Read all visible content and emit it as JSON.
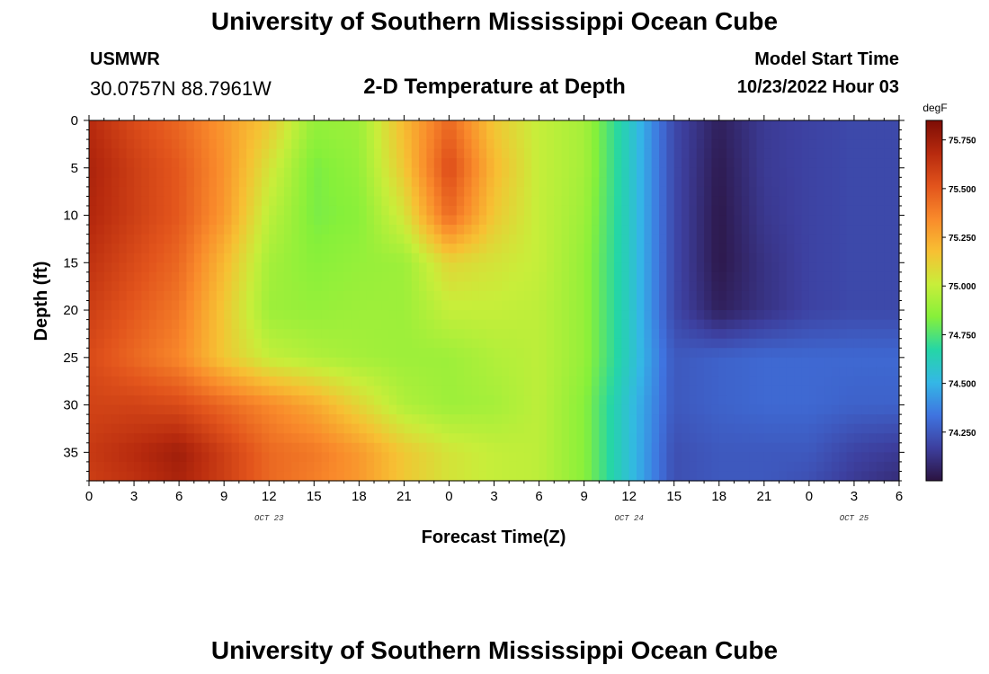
{
  "header": {
    "title": "University of Southern Mississippi Ocean Cube",
    "station": "USMWR",
    "coords": "30.0757N  88.7961W",
    "subtitle": "2-D Temperature at Depth",
    "start_label": "Model Start Time",
    "start_time": "10/23/2022 Hour 03"
  },
  "footer": {
    "title": "University of Southern Mississippi Ocean Cube"
  },
  "colors": {
    "colormap": [
      "#2b1340",
      "#3d3f9e",
      "#3f74e0",
      "#34b7e6",
      "#25d6a6",
      "#86f03a",
      "#c8ee3a",
      "#f7c033",
      "#f98a2b",
      "#e2541c",
      "#b72a0e",
      "#7d0d05"
    ]
  },
  "chart_data": {
    "type": "heatmap",
    "title": "2-D Temperature at Depth",
    "xlabel": "Forecast Time(Z)",
    "ylabel": "Depth (ft)",
    "xlim": [
      0,
      54
    ],
    "ylim": [
      0,
      38
    ],
    "y_inverted": true,
    "x_tick_labels": [
      "0",
      "3",
      "6",
      "9",
      "12",
      "15",
      "18",
      "21",
      "0",
      "3",
      "6",
      "9",
      "12",
      "15",
      "18",
      "21",
      "0",
      "3",
      "6"
    ],
    "x_date_labels": [
      {
        "label": "OCT 23",
        "at_hour": 12
      },
      {
        "label": "OCT 24",
        "at_hour": 36
      },
      {
        "label": "OCT 25",
        "at_hour": 51
      }
    ],
    "y_ticks": [
      0,
      5,
      10,
      15,
      20,
      25,
      30,
      35
    ],
    "colorbar": {
      "unit": "degF",
      "range": [
        74.0,
        75.85
      ],
      "ticks": [
        "75.750",
        "75.500",
        "75.250",
        "75.000",
        "74.750",
        "74.500",
        "74.250"
      ]
    },
    "grid": false,
    "depths": [
      0,
      5,
      10,
      15,
      20,
      25,
      30,
      35,
      38
    ],
    "hours": [
      0,
      3,
      6,
      9,
      12,
      15,
      18,
      21,
      24,
      27,
      30,
      33,
      36,
      39,
      42,
      45,
      48,
      51,
      54
    ],
    "temperatures": [
      [
        75.68,
        75.55,
        75.45,
        75.3,
        75.15,
        74.88,
        74.9,
        75.2,
        75.45,
        75.15,
        75.0,
        74.92,
        74.6,
        74.2,
        74.05,
        74.15,
        74.18,
        74.2,
        74.2
      ],
      [
        75.72,
        75.6,
        75.5,
        75.32,
        75.05,
        74.82,
        74.88,
        75.15,
        75.55,
        75.2,
        75.0,
        74.92,
        74.6,
        74.2,
        74.03,
        74.15,
        74.18,
        74.2,
        74.2
      ],
      [
        75.7,
        75.6,
        75.5,
        75.3,
        74.98,
        74.82,
        74.85,
        75.05,
        75.45,
        75.15,
        75.0,
        74.9,
        74.6,
        74.2,
        74.02,
        74.14,
        74.18,
        74.2,
        74.2
      ],
      [
        75.65,
        75.55,
        75.45,
        75.2,
        74.92,
        74.85,
        74.88,
        74.9,
        75.1,
        75.05,
        75.0,
        74.88,
        74.6,
        74.2,
        74.02,
        74.12,
        74.18,
        74.2,
        74.2
      ],
      [
        75.6,
        75.5,
        75.4,
        75.15,
        74.9,
        74.88,
        74.9,
        74.9,
        75.0,
        75.0,
        74.98,
        74.88,
        74.6,
        74.2,
        74.05,
        74.12,
        74.18,
        74.2,
        74.2
      ],
      [
        75.55,
        75.45,
        75.35,
        75.15,
        75.0,
        74.95,
        74.92,
        74.9,
        74.9,
        74.95,
        74.98,
        74.88,
        74.6,
        74.25,
        74.28,
        74.3,
        74.3,
        74.3,
        74.3
      ],
      [
        75.58,
        75.58,
        75.55,
        75.45,
        75.35,
        75.25,
        75.1,
        74.95,
        74.9,
        74.92,
        74.98,
        74.85,
        74.55,
        74.25,
        74.28,
        74.3,
        74.3,
        74.28,
        74.28
      ],
      [
        75.62,
        75.68,
        75.75,
        75.6,
        75.45,
        75.4,
        75.3,
        75.15,
        75.05,
        75.0,
        74.98,
        74.85,
        74.55,
        74.22,
        74.25,
        74.25,
        74.25,
        74.18,
        74.15
      ],
      [
        75.6,
        75.65,
        75.72,
        75.6,
        75.45,
        75.38,
        75.3,
        75.15,
        75.05,
        75.0,
        74.98,
        74.85,
        74.55,
        74.22,
        74.25,
        74.25,
        74.22,
        74.15,
        74.1
      ]
    ]
  }
}
